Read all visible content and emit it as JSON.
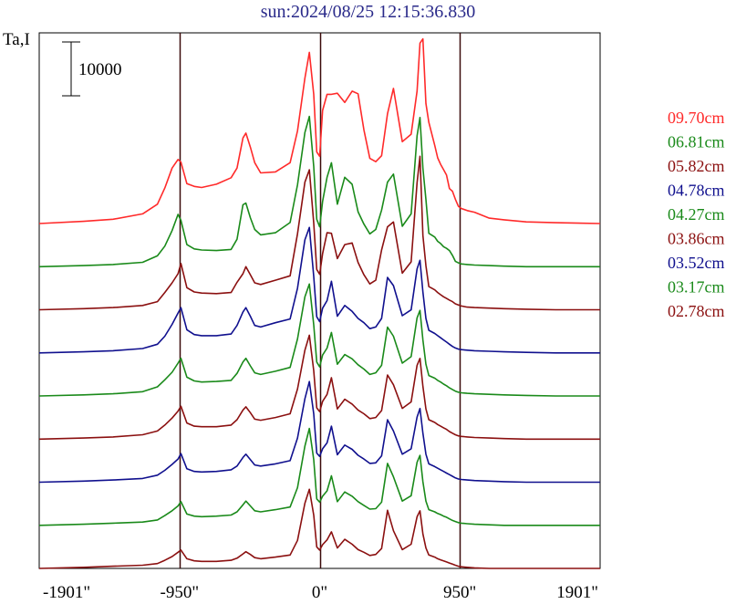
{
  "title": "sun:2024/08/25 12:15:36.830",
  "colors": {
    "red": "#ff2a2a",
    "green": "#1a8a1a",
    "maroon": "#8b1010",
    "blue": "#10108e"
  },
  "chart_data": {
    "type": "line",
    "title": "sun:2024/08/25 12:15:36.830",
    "ylabel": "Ta,I",
    "scale_bar_label": "10000",
    "scale_bar_value": 10000,
    "xlim": [
      -1901,
      1901
    ],
    "xticks": [
      -1901,
      -950,
      0,
      950,
      1901
    ],
    "x_tick_labels": [
      "-1901\"",
      "-950\"",
      "0\"",
      "950\"",
      "1901\""
    ],
    "vertical_lines": [
      -950,
      0,
      950
    ],
    "grid": false,
    "legend_position": "right",
    "profile_x": [
      -1901,
      -1600,
      -1400,
      -1200,
      -1100,
      -1050,
      -1000,
      -960,
      -940,
      -900,
      -850,
      -800,
      -700,
      -600,
      -560,
      -520,
      -500,
      -470,
      -440,
      -400,
      -300,
      -200,
      -150,
      -100,
      -70,
      -40,
      -20,
      0,
      20,
      50,
      80,
      120,
      170,
      220,
      260,
      300,
      340,
      380,
      420,
      460,
      500,
      560,
      620,
      660,
      680,
      700,
      720,
      740,
      780,
      800,
      820,
      840,
      860,
      880,
      900,
      920,
      940,
      960,
      1000,
      1050,
      1150,
      1250,
      1400,
      1600,
      1901
    ],
    "series": [
      {
        "name": "09.70cm",
        "color": "#ff2a2a",
        "values": [
          0,
          400,
          800,
          1800,
          3600,
          6600,
          10300,
          11900,
          11400,
          7400,
          6900,
          6700,
          7300,
          8500,
          10300,
          15900,
          16800,
          14200,
          11300,
          9400,
          9600,
          11300,
          17200,
          27000,
          31800,
          24000,
          13300,
          12500,
          21000,
          24000,
          24000,
          24200,
          22500,
          24600,
          24100,
          17400,
          12100,
          11500,
          12600,
          20400,
          25100,
          15200,
          16600,
          24600,
          33500,
          34300,
          22300,
          18800,
          14500,
          12200,
          11000,
          10000,
          9000,
          6500,
          6000,
          4500,
          3200,
          2800,
          2400,
          2100,
          1000,
          700,
          300,
          150,
          0
        ]
      },
      {
        "name": "06.81cm",
        "color": "#1a8a1a",
        "values": [
          0,
          200,
          400,
          800,
          2000,
          3800,
          6700,
          9700,
          8600,
          4100,
          3300,
          3100,
          3000,
          3200,
          5100,
          11500,
          11800,
          9100,
          6900,
          5900,
          6300,
          8200,
          15200,
          24900,
          27900,
          18600,
          8800,
          7400,
          12100,
          16600,
          19300,
          11600,
          16600,
          15300,
          10200,
          7900,
          6100,
          6900,
          10500,
          15700,
          17200,
          7500,
          9800,
          24300,
          27700,
          18300,
          12500,
          6200,
          5500,
          4700,
          4300,
          3700,
          3400,
          3000,
          2100,
          1000,
          700,
          500,
          400,
          300,
          200,
          100,
          0,
          0,
          0
        ]
      },
      {
        "name": "05.82cm",
        "color": "#8b1010",
        "values": [
          0,
          200,
          400,
          800,
          1500,
          3200,
          5000,
          6700,
          8600,
          4100,
          3300,
          3100,
          3000,
          3200,
          5100,
          6700,
          8000,
          6500,
          5000,
          4700,
          5500,
          6300,
          14100,
          23700,
          26000,
          16100,
          7500,
          6600,
          10400,
          14300,
          14200,
          9500,
          12100,
          12400,
          8800,
          6500,
          4800,
          5500,
          11100,
          15400,
          16300,
          6800,
          8900,
          23600,
          28500,
          13800,
          8200,
          4300,
          3700,
          3200,
          2800,
          2400,
          2100,
          1800,
          1500,
          1100,
          900,
          700,
          500,
          400,
          300,
          200,
          100,
          0,
          0
        ]
      },
      {
        "name": "04.78cm",
        "color": "#10108e",
        "values": [
          0,
          200,
          400,
          800,
          1600,
          3100,
          5300,
          7400,
          8400,
          4300,
          3400,
          3200,
          3200,
          3500,
          5100,
          7600,
          8400,
          6800,
          5100,
          4800,
          5600,
          6300,
          12000,
          21000,
          23300,
          14200,
          6700,
          5800,
          8300,
          9700,
          13300,
          6800,
          8800,
          7700,
          6400,
          5600,
          4500,
          4800,
          6400,
          14000,
          12500,
          6900,
          8000,
          15600,
          17200,
          11300,
          6400,
          4200,
          3600,
          3200,
          2800,
          2400,
          2000,
          1600,
          1200,
          900,
          700,
          600,
          500,
          400,
          300,
          200,
          100,
          0,
          0
        ]
      },
      {
        "name": "04.27cm",
        "color": "#1a8a1a",
        "values": [
          0,
          200,
          400,
          800,
          1700,
          3000,
          4400,
          6100,
          7000,
          3500,
          2800,
          2600,
          2700,
          2900,
          4200,
          6300,
          7000,
          5600,
          4300,
          4000,
          4600,
          5300,
          10600,
          18400,
          20800,
          13200,
          6300,
          5400,
          7600,
          8900,
          11800,
          5900,
          7700,
          6900,
          5800,
          5000,
          4000,
          4300,
          5700,
          12800,
          11100,
          6100,
          7300,
          14500,
          15900,
          10400,
          5900,
          3800,
          3300,
          2900,
          2600,
          2200,
          1900,
          1500,
          1200,
          900,
          700,
          600,
          500,
          400,
          300,
          200,
          100,
          0,
          0
        ]
      },
      {
        "name": "03.86cm",
        "color": "#8b1010",
        "values": [
          0,
          200,
          400,
          800,
          1500,
          2600,
          3900,
          5200,
          6100,
          3000,
          2400,
          2300,
          2300,
          2600,
          3600,
          5400,
          6000,
          4900,
          3700,
          3500,
          4000,
          4700,
          9300,
          16500,
          19300,
          12700,
          5800,
          5100,
          7000,
          8300,
          11400,
          5600,
          7400,
          6500,
          5400,
          4700,
          3800,
          4000,
          5300,
          11900,
          10100,
          5700,
          6900,
          13700,
          15000,
          9800,
          5600,
          3600,
          3100,
          2700,
          2400,
          2100,
          1800,
          1400,
          1100,
          800,
          600,
          500,
          400,
          300,
          200,
          100,
          0,
          0,
          0
        ]
      },
      {
        "name": "03.52cm",
        "color": "#10108e",
        "values": [
          0,
          200,
          400,
          700,
          1300,
          2200,
          3300,
          4300,
          5300,
          2500,
          2000,
          1900,
          2000,
          2300,
          3000,
          4600,
          5200,
          4200,
          3200,
          3000,
          3400,
          4000,
          8200,
          15500,
          18700,
          12700,
          5400,
          4800,
          6200,
          7300,
          10400,
          5100,
          6900,
          6100,
          5000,
          4300,
          3500,
          3600,
          4900,
          11600,
          9500,
          5200,
          6200,
          12100,
          13700,
          9100,
          5200,
          3400,
          2900,
          2600,
          2300,
          2000,
          1700,
          1400,
          1100,
          800,
          600,
          500,
          400,
          300,
          200,
          100,
          0,
          0,
          0
        ]
      },
      {
        "name": "03.17cm",
        "color": "#1a8a1a",
        "values": [
          0,
          200,
          400,
          600,
          1000,
          1800,
          2700,
          3600,
          4400,
          2100,
          1700,
          1600,
          1700,
          1900,
          2500,
          3800,
          4500,
          3600,
          2700,
          2500,
          2900,
          3400,
          7000,
          14700,
          18000,
          12200,
          4900,
          4300,
          5400,
          6400,
          9200,
          4400,
          6200,
          5400,
          4400,
          3700,
          3000,
          3100,
          4300,
          11500,
          9000,
          4500,
          5500,
          11700,
          13000,
          8100,
          4500,
          2900,
          2500,
          2200,
          2000,
          1700,
          1500,
          1200,
          900,
          700,
          500,
          400,
          300,
          200,
          100,
          0,
          0,
          0,
          0
        ]
      },
      {
        "name": "02.78cm",
        "color": "#8b1010",
        "values": [
          0,
          200,
          400,
          600,
          900,
          1500,
          2200,
          3000,
          3400,
          1800,
          1400,
          1300,
          1300,
          1500,
          1900,
          2700,
          3100,
          2600,
          2000,
          1800,
          2100,
          2500,
          5200,
          12100,
          14700,
          9900,
          4000,
          3400,
          4400,
          5300,
          6800,
          3800,
          5400,
          4500,
          3500,
          3000,
          2400,
          2600,
          3700,
          10800,
          7000,
          3500,
          4500,
          9600,
          10700,
          6400,
          3800,
          2500,
          2100,
          1800,
          1600,
          1400,
          1200,
          1000,
          800,
          600,
          400,
          300,
          200,
          100,
          0,
          0,
          0,
          0,
          0
        ]
      }
    ]
  }
}
